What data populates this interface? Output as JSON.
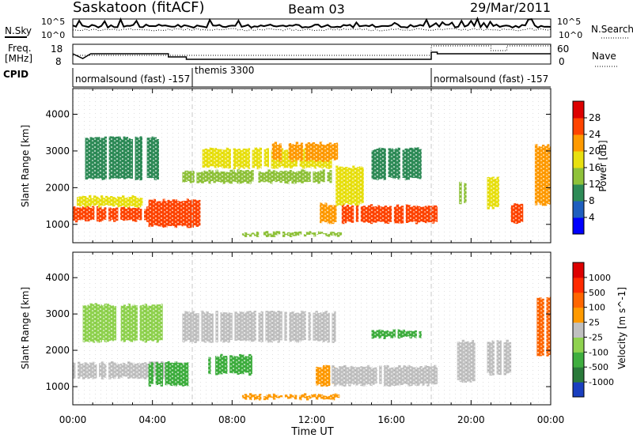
{
  "header": {
    "station": "Saskatoon (fitACF)",
    "beam": "Beam 03",
    "date": "29/Mar/2011"
  },
  "top_strips": {
    "sky_label": "N.Sky",
    "sky_ticks": [
      "10^5",
      "10^0"
    ],
    "search_label": "N.Search",
    "search_ticks": [
      "10^5",
      "10^0"
    ],
    "freq_label_line1": "Freq.",
    "freq_label_line2": "[MHz]",
    "freq_ticks": [
      "18",
      "8"
    ],
    "nave_label": "Nave",
    "nave_ticks": [
      "60",
      "0"
    ],
    "cpid_label": "CPID",
    "cpid_segments": [
      {
        "label": "normalsound (fast) -157",
        "start_hour": 0
      },
      {
        "label": "themis 3300",
        "start_hour": 6
      },
      {
        "label": "normalsound (fast) -157",
        "start_hour": 18
      }
    ]
  },
  "power_colorbar": {
    "label": "Power [dB]",
    "ticks": [
      "4",
      "8",
      "12",
      "16",
      "20",
      "24",
      "28"
    ],
    "colors": [
      "#0000ff",
      "#1f5fbf",
      "#2e8b57",
      "#8fc23a",
      "#e8e010",
      "#ff9a00",
      "#ff4400",
      "#dd0000"
    ]
  },
  "velocity_colorbar": {
    "label": "Velocity [m s^-1]",
    "ticks": [
      "1000",
      "500",
      "100",
      "25",
      "-25",
      "-100",
      "-500",
      "-1000"
    ],
    "colors": [
      "#1a3fbf",
      "#2a7a3a",
      "#3fae3f",
      "#8fd24f",
      "#c0c0c0",
      "#ff9a00",
      "#ff6600",
      "#ff2a00",
      "#dd0000"
    ]
  },
  "chart_data": [
    {
      "type": "heatmap",
      "name": "power",
      "ylabel": "Slant Range [km]",
      "xlabel": "",
      "x_ticks": [
        "00:00",
        "04:00",
        "08:00",
        "12:00",
        "16:00",
        "20:00",
        "00:00"
      ],
      "x_range_hours": [
        0,
        24
      ],
      "y_ticks": [
        1000,
        2000,
        3000,
        4000
      ],
      "ylim": [
        500,
        4700
      ],
      "regions": [
        {
          "t0": 0.0,
          "t1": 4.0,
          "r0": 1050,
          "r1": 1500,
          "level": 6
        },
        {
          "t0": 0.2,
          "t1": 3.5,
          "r0": 1450,
          "r1": 1800,
          "level": 4
        },
        {
          "t0": 3.8,
          "t1": 6.4,
          "r0": 900,
          "r1": 1700,
          "level": 6
        },
        {
          "t0": 0.5,
          "t1": 4.5,
          "r0": 2200,
          "r1": 3400,
          "level": 2
        },
        {
          "t0": 5.5,
          "t1": 13.0,
          "r0": 2100,
          "r1": 2500,
          "level": 3
        },
        {
          "t0": 6.5,
          "t1": 13.0,
          "r0": 2500,
          "r1": 3100,
          "level": 4
        },
        {
          "t0": 10.0,
          "t1": 13.3,
          "r0": 2700,
          "r1": 3250,
          "level": 5
        },
        {
          "t0": 8.5,
          "t1": 13.5,
          "r0": 650,
          "r1": 820,
          "level": 3
        },
        {
          "t0": 12.4,
          "t1": 13.3,
          "r0": 1000,
          "r1": 1600,
          "level": 5
        },
        {
          "t0": 13.5,
          "t1": 18.3,
          "r0": 1000,
          "r1": 1550,
          "level": 6
        },
        {
          "t0": 13.2,
          "t1": 14.6,
          "r0": 1500,
          "r1": 2600,
          "level": 4
        },
        {
          "t0": 15.0,
          "t1": 17.5,
          "r0": 2200,
          "r1": 3100,
          "level": 2
        },
        {
          "t0": 19.4,
          "t1": 19.8,
          "r0": 1500,
          "r1": 2200,
          "level": 3
        },
        {
          "t0": 20.8,
          "t1": 21.4,
          "r0": 1400,
          "r1": 2300,
          "level": 4
        },
        {
          "t0": 22.0,
          "t1": 22.6,
          "r0": 1000,
          "r1": 1600,
          "level": 6
        },
        {
          "t0": 23.2,
          "t1": 24.0,
          "r0": 1500,
          "r1": 3200,
          "level": 5
        }
      ]
    },
    {
      "type": "heatmap",
      "name": "velocity",
      "ylabel": "Slant Range [km]",
      "xlabel": "Time UT",
      "x_ticks": [
        "00:00",
        "04:00",
        "08:00",
        "12:00",
        "16:00",
        "20:00",
        "00:00"
      ],
      "x_range_hours": [
        0,
        24
      ],
      "y_ticks": [
        1000,
        2000,
        3000,
        4000
      ],
      "ylim": [
        500,
        4700
      ],
      "regions": [
        {
          "t0": 0.0,
          "t1": 5.5,
          "r0": 1200,
          "r1": 1700,
          "level": 4
        },
        {
          "t0": 0.5,
          "t1": 4.5,
          "r0": 2200,
          "r1": 3300,
          "level": 3
        },
        {
          "t0": 3.8,
          "t1": 5.8,
          "r0": 1000,
          "r1": 1700,
          "level": 2
        },
        {
          "t0": 5.5,
          "t1": 13.2,
          "r0": 2200,
          "r1": 3100,
          "level": 4
        },
        {
          "t0": 6.8,
          "t1": 9.0,
          "r0": 1300,
          "r1": 1900,
          "level": 2
        },
        {
          "t0": 8.5,
          "t1": 13.5,
          "r0": 620,
          "r1": 820,
          "level": 5
        },
        {
          "t0": 12.2,
          "t1": 13.2,
          "r0": 1000,
          "r1": 1600,
          "level": 5
        },
        {
          "t0": 13.0,
          "t1": 18.3,
          "r0": 1000,
          "r1": 1600,
          "level": 4
        },
        {
          "t0": 15.0,
          "t1": 17.5,
          "r0": 2300,
          "r1": 2600,
          "level": 2
        },
        {
          "t0": 19.3,
          "t1": 20.2,
          "r0": 1100,
          "r1": 2300,
          "level": 4
        },
        {
          "t0": 20.8,
          "t1": 22.0,
          "r0": 1300,
          "r1": 2300,
          "level": 4
        },
        {
          "t0": 23.3,
          "t1": 24.0,
          "r0": 1800,
          "r1": 3500,
          "level": 6
        }
      ]
    }
  ]
}
